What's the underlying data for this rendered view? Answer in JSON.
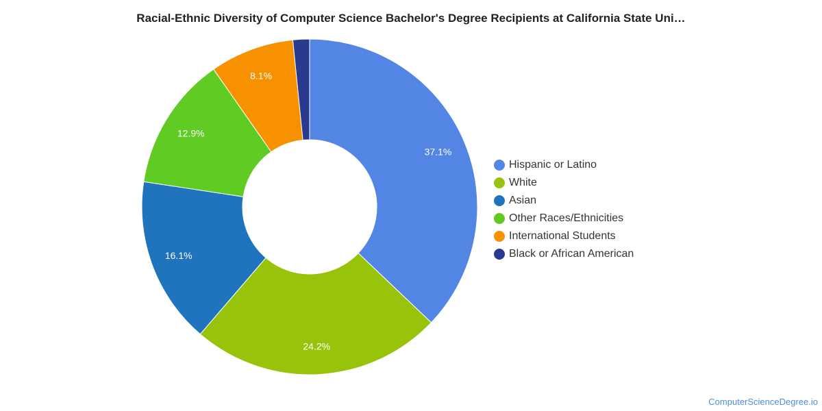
{
  "chart_data": {
    "type": "pie",
    "title": "Racial-Ethnic Diversity of Computer Science Bachelor's Degree Recipients at California State Uni…",
    "donut": true,
    "legend_position": "right",
    "slices": [
      {
        "name": "Hispanic or Latino",
        "value": 37.1,
        "label": "37.1%",
        "color": "#5386e4"
      },
      {
        "name": "White",
        "value": 24.2,
        "label": "24.2%",
        "color": "#97c30a"
      },
      {
        "name": "Asian",
        "value": 16.1,
        "label": "16.1%",
        "color": "#1f74bd"
      },
      {
        "name": "Other Races/Ethnicities",
        "value": 12.9,
        "label": "12.9%",
        "color": "#5fcb23"
      },
      {
        "name": "International Students",
        "value": 8.1,
        "label": "8.1%",
        "color": "#f79100"
      },
      {
        "name": "Black or African American",
        "value": 1.6,
        "label": "",
        "color": "#2a3a8f"
      }
    ]
  },
  "watermark": "ComputerScienceDegree.io"
}
